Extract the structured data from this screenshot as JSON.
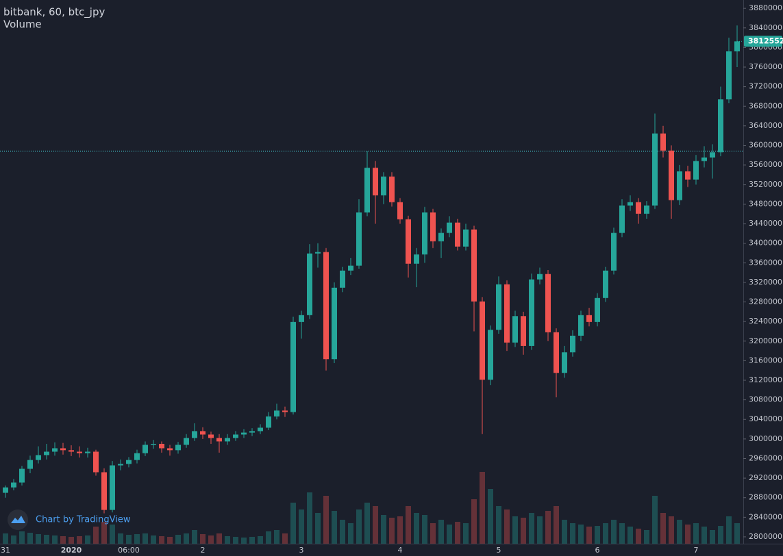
{
  "chart_data": {
    "type": "candlestick",
    "title": "bitbank, 60, btc_jpy",
    "subtitle": "Volume",
    "attribution": "Chart by TradingView",
    "up_color": "#26a69a",
    "down_color": "#ef5350",
    "categories": [
      "31",
      null,
      null,
      null,
      null,
      null,
      null,
      null,
      "2020",
      null,
      null,
      null,
      null,
      null,
      null,
      "06:00",
      null,
      null,
      null,
      null,
      null,
      null,
      null,
      null,
      "2",
      null,
      null,
      null,
      null,
      null,
      null,
      null,
      null,
      null,
      null,
      null,
      "3",
      null,
      null,
      null,
      null,
      null,
      null,
      null,
      null,
      null,
      null,
      null,
      "4",
      null,
      null,
      null,
      null,
      null,
      null,
      null,
      null,
      null,
      null,
      null,
      "5",
      null,
      null,
      null,
      null,
      null,
      null,
      null,
      null,
      null,
      null,
      null,
      "6",
      null,
      null,
      null,
      null,
      null,
      null,
      null,
      null,
      null,
      null,
      null,
      "7",
      null,
      null,
      null,
      null,
      null
    ],
    "ohlc": [
      [
        2890000,
        2905000,
        2880000,
        2901000
      ],
      [
        2901000,
        2918000,
        2895000,
        2911000
      ],
      [
        2911000,
        2945000,
        2905000,
        2939000
      ],
      [
        2939000,
        2966000,
        2930000,
        2957000
      ],
      [
        2957000,
        2985000,
        2950000,
        2967000
      ],
      [
        2967000,
        2990000,
        2958000,
        2974000
      ],
      [
        2974000,
        2993000,
        2966000,
        2981000
      ],
      [
        2981000,
        2992000,
        2968000,
        2977000
      ],
      [
        2977000,
        2987000,
        2965000,
        2974000
      ],
      [
        2974000,
        2985000,
        2962000,
        2971000
      ],
      [
        2971000,
        2982000,
        2962000,
        2974000
      ],
      [
        2974000,
        2978000,
        2925000,
        2932000
      ],
      [
        2932000,
        2940000,
        2848000,
        2855000
      ],
      [
        2855000,
        2955000,
        2850000,
        2946000
      ],
      [
        2946000,
        2958000,
        2936000,
        2949000
      ],
      [
        2949000,
        2963000,
        2942000,
        2957000
      ],
      [
        2957000,
        2978000,
        2950000,
        2971000
      ],
      [
        2971000,
        2995000,
        2965000,
        2988000
      ],
      [
        2988000,
        2998000,
        2980000,
        2990000
      ],
      [
        2990000,
        2995000,
        2972000,
        2981000
      ],
      [
        2981000,
        2988000,
        2966000,
        2977000
      ],
      [
        2977000,
        2994000,
        2970000,
        2988000
      ],
      [
        2988000,
        3010000,
        2982000,
        3002000
      ],
      [
        3002000,
        3032000,
        2996000,
        3016000
      ],
      [
        3016000,
        3024000,
        3000000,
        3009000
      ],
      [
        3009000,
        3015000,
        2990000,
        3002000
      ],
      [
        3002000,
        3010000,
        2972000,
        2995000
      ],
      [
        2995000,
        3010000,
        2988000,
        3002000
      ],
      [
        3002000,
        3016000,
        2996000,
        3009000
      ],
      [
        3009000,
        3020000,
        3002000,
        3013000
      ],
      [
        3013000,
        3022000,
        3006000,
        3016000
      ],
      [
        3016000,
        3030000,
        3010000,
        3023000
      ],
      [
        3023000,
        3055000,
        3018000,
        3046000
      ],
      [
        3046000,
        3072000,
        3040000,
        3058000
      ],
      [
        3058000,
        3066000,
        3045000,
        3055000
      ],
      [
        3055000,
        3250000,
        3050000,
        3239000
      ],
      [
        3239000,
        3262000,
        3205000,
        3253000
      ],
      [
        3253000,
        3398000,
        3245000,
        3379000
      ],
      [
        3379000,
        3400000,
        3350000,
        3382000
      ],
      [
        3382000,
        3390000,
        3140000,
        3163000
      ],
      [
        3163000,
        3320000,
        3155000,
        3309000
      ],
      [
        3309000,
        3352000,
        3300000,
        3344000
      ],
      [
        3344000,
        3370000,
        3335000,
        3354000
      ],
      [
        3354000,
        3490000,
        3348000,
        3463000
      ],
      [
        3463000,
        3588000,
        3455000,
        3554000
      ],
      [
        3554000,
        3568000,
        3440000,
        3498000
      ],
      [
        3498000,
        3545000,
        3480000,
        3536000
      ],
      [
        3536000,
        3545000,
        3475000,
        3484000
      ],
      [
        3484000,
        3492000,
        3440000,
        3449000
      ],
      [
        3449000,
        3456000,
        3330000,
        3358000
      ],
      [
        3358000,
        3390000,
        3310000,
        3377000
      ],
      [
        3377000,
        3474000,
        3360000,
        3463000
      ],
      [
        3463000,
        3470000,
        3390000,
        3404000
      ],
      [
        3404000,
        3430000,
        3370000,
        3421000
      ],
      [
        3421000,
        3455000,
        3412000,
        3442000
      ],
      [
        3442000,
        3450000,
        3385000,
        3393000
      ],
      [
        3393000,
        3440000,
        3385000,
        3428000
      ],
      [
        3428000,
        3436000,
        3220000,
        3281000
      ],
      [
        3281000,
        3290000,
        3010000,
        3121000
      ],
      [
        3121000,
        3232000,
        3110000,
        3223000
      ],
      [
        3223000,
        3332000,
        3215000,
        3316000
      ],
      [
        3316000,
        3324000,
        3180000,
        3197000
      ],
      [
        3197000,
        3262000,
        3188000,
        3251000
      ],
      [
        3251000,
        3260000,
        3172000,
        3190000
      ],
      [
        3190000,
        3338000,
        3182000,
        3326000
      ],
      [
        3326000,
        3350000,
        3316000,
        3337000
      ],
      [
        3337000,
        3345000,
        3200000,
        3218000
      ],
      [
        3218000,
        3226000,
        3085000,
        3135000
      ],
      [
        3135000,
        3190000,
        3125000,
        3177000
      ],
      [
        3177000,
        3222000,
        3168000,
        3211000
      ],
      [
        3211000,
        3262000,
        3200000,
        3253000
      ],
      [
        3253000,
        3268000,
        3230000,
        3239000
      ],
      [
        3239000,
        3298000,
        3230000,
        3288000
      ],
      [
        3288000,
        3352000,
        3280000,
        3344000
      ],
      [
        3344000,
        3432000,
        3336000,
        3421000
      ],
      [
        3421000,
        3490000,
        3412000,
        3477000
      ],
      [
        3477000,
        3498000,
        3466000,
        3484000
      ],
      [
        3484000,
        3492000,
        3440000,
        3460000
      ],
      [
        3460000,
        3486000,
        3450000,
        3477000
      ],
      [
        3477000,
        3665000,
        3470000,
        3624000
      ],
      [
        3624000,
        3640000,
        3575000,
        3589000
      ],
      [
        3589000,
        3600000,
        3450000,
        3488000
      ],
      [
        3488000,
        3560000,
        3478000,
        3547000
      ],
      [
        3547000,
        3558000,
        3515000,
        3530000
      ],
      [
        3530000,
        3580000,
        3520000,
        3568000
      ],
      [
        3568000,
        3598000,
        3555000,
        3575000
      ],
      [
        3575000,
        3602000,
        3532000,
        3586000
      ],
      [
        3586000,
        3720000,
        3578000,
        3694000
      ],
      [
        3694000,
        3820000,
        3686000,
        3792000
      ],
      [
        3792000,
        3845000,
        3760000,
        3812552
      ]
    ],
    "volume": [
      150,
      120,
      180,
      160,
      140,
      130,
      120,
      110,
      100,
      110,
      120,
      250,
      320,
      280,
      150,
      130,
      140,
      150,
      120,
      110,
      100,
      130,
      150,
      200,
      140,
      120,
      150,
      110,
      100,
      90,
      100,
      110,
      180,
      200,
      150,
      600,
      500,
      750,
      450,
      700,
      480,
      350,
      300,
      500,
      600,
      550,
      420,
      380,
      400,
      550,
      450,
      420,
      300,
      350,
      280,
      320,
      300,
      650,
      1050,
      800,
      550,
      500,
      400,
      380,
      450,
      400,
      480,
      550,
      350,
      300,
      280,
      250,
      260,
      300,
      350,
      300,
      250,
      220,
      200,
      700,
      450,
      400,
      350,
      280,
      300,
      250,
      200,
      260,
      400,
      300
    ],
    "vlim": [
      0,
      2000
    ],
    "hline": 3588000,
    "ylim": [
      2786000,
      3897000
    ],
    "yticks": [
      2800000,
      2840000,
      2880000,
      2920000,
      2960000,
      3000000,
      3040000,
      3080000,
      3120000,
      3160000,
      3200000,
      3240000,
      3280000,
      3320000,
      3360000,
      3400000,
      3440000,
      3480000,
      3520000,
      3560000,
      3600000,
      3640000,
      3680000,
      3720000,
      3760000,
      3800000,
      3840000,
      3880000
    ]
  }
}
